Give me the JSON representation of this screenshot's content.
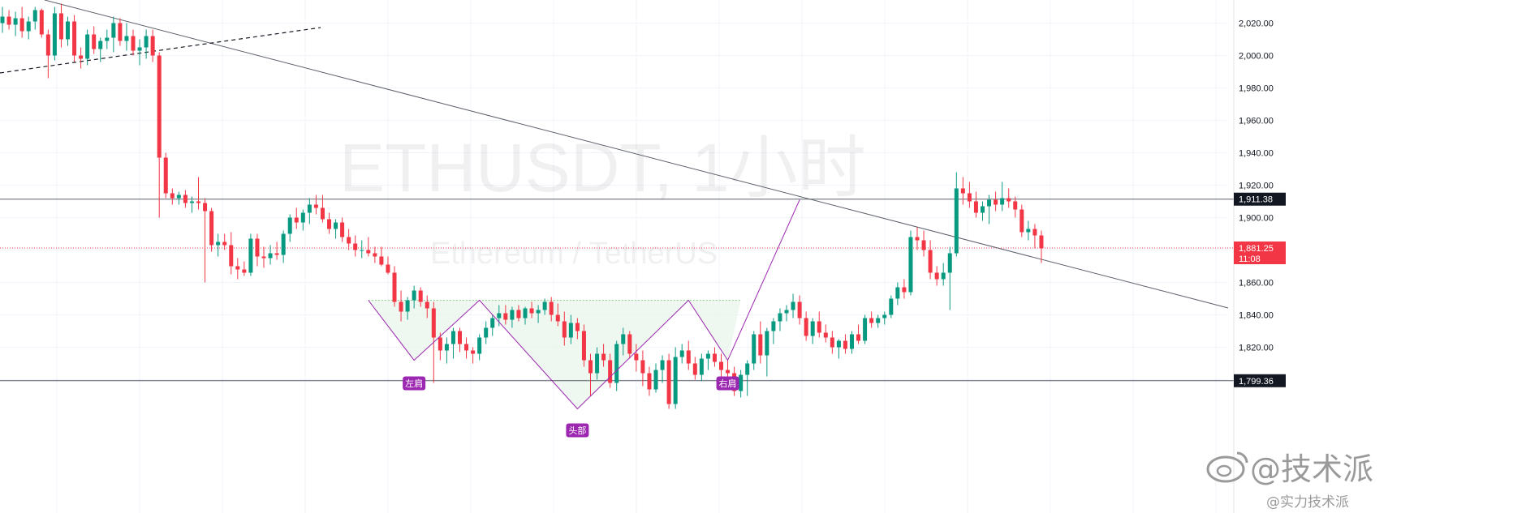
{
  "chart_data": {
    "type": "candlestick",
    "title": "ETHUSDT, 1小时",
    "subtitle": "Ethereum / TetherUS",
    "y_ticks": [
      1800,
      1820,
      1840,
      1860,
      1880,
      1900,
      1920,
      1940,
      1960,
      1980,
      2000,
      2020
    ],
    "y_tick_labels": [
      "1,800.00",
      "1,820.00",
      "1,840.00",
      "1,860.00",
      "1,880.00",
      "1,900.00",
      "1,920.00",
      "1,940.00",
      "1,960.00",
      "1,980.00",
      "2,000.00",
      "2,020.00"
    ],
    "ylim": [
      1776,
      2031
    ],
    "grid": true,
    "colors": {
      "up": "#089981",
      "down": "#f23645",
      "pattern": "#9c27b0",
      "label_bg": "#9c27b0",
      "trend": "#5d606b",
      "price": "#f23645"
    },
    "candles": [
      {
        "o": 2020,
        "h": 2030,
        "l": 2014,
        "c": 2024
      },
      {
        "o": 2024,
        "h": 2028,
        "l": 2016,
        "c": 2019
      },
      {
        "o": 2019,
        "h": 2027,
        "l": 2012,
        "c": 2023
      },
      {
        "o": 2023,
        "h": 2030,
        "l": 2011,
        "c": 2015
      },
      {
        "o": 2015,
        "h": 2024,
        "l": 2010,
        "c": 2021
      },
      {
        "o": 2021,
        "h": 2030,
        "l": 2016,
        "c": 2028
      },
      {
        "o": 2028,
        "h": 2029,
        "l": 2011,
        "c": 2013
      },
      {
        "o": 2013,
        "h": 2016,
        "l": 1986,
        "c": 2000
      },
      {
        "o": 2000,
        "h": 2030,
        "l": 1997,
        "c": 2026
      },
      {
        "o": 2026,
        "h": 2032,
        "l": 2005,
        "c": 2010
      },
      {
        "o": 2010,
        "h": 2024,
        "l": 2006,
        "c": 2021
      },
      {
        "o": 2021,
        "h": 2025,
        "l": 1996,
        "c": 2000
      },
      {
        "o": 2000,
        "h": 2005,
        "l": 1992,
        "c": 1998
      },
      {
        "o": 1998,
        "h": 2016,
        "l": 1994,
        "c": 2013
      },
      {
        "o": 2013,
        "h": 2018,
        "l": 2001,
        "c": 2004
      },
      {
        "o": 2004,
        "h": 2011,
        "l": 1996,
        "c": 2009
      },
      {
        "o": 2009,
        "h": 2016,
        "l": 2004,
        "c": 2011
      },
      {
        "o": 2011,
        "h": 2024,
        "l": 2002,
        "c": 2020
      },
      {
        "o": 2020,
        "h": 2023,
        "l": 2006,
        "c": 2009
      },
      {
        "o": 2009,
        "h": 2020,
        "l": 2003,
        "c": 2012
      },
      {
        "o": 2012,
        "h": 2016,
        "l": 2000,
        "c": 2003
      },
      {
        "o": 2003,
        "h": 2010,
        "l": 1994,
        "c": 2005
      },
      {
        "o": 2005,
        "h": 2016,
        "l": 1998,
        "c": 2012
      },
      {
        "o": 2012,
        "h": 2016,
        "l": 1996,
        "c": 2000
      },
      {
        "o": 2000,
        "h": 2002,
        "l": 1900,
        "c": 1937
      },
      {
        "o": 1937,
        "h": 1940,
        "l": 1912,
        "c": 1915
      },
      {
        "o": 1915,
        "h": 1918,
        "l": 1908,
        "c": 1912
      },
      {
        "o": 1912,
        "h": 1916,
        "l": 1908,
        "c": 1914
      },
      {
        "o": 1914,
        "h": 1917,
        "l": 1906,
        "c": 1909
      },
      {
        "o": 1909,
        "h": 1913,
        "l": 1903,
        "c": 1910
      },
      {
        "o": 1910,
        "h": 1925,
        "l": 1905,
        "c": 1909
      },
      {
        "o": 1909,
        "h": 1912,
        "l": 1860,
        "c": 1904
      },
      {
        "o": 1904,
        "h": 1906,
        "l": 1879,
        "c": 1883
      },
      {
        "o": 1883,
        "h": 1890,
        "l": 1876,
        "c": 1885
      },
      {
        "o": 1885,
        "h": 1890,
        "l": 1880,
        "c": 1883
      },
      {
        "o": 1883,
        "h": 1891,
        "l": 1865,
        "c": 1870
      },
      {
        "o": 1870,
        "h": 1875,
        "l": 1862,
        "c": 1868
      },
      {
        "o": 1868,
        "h": 1873,
        "l": 1864,
        "c": 1866
      },
      {
        "o": 1866,
        "h": 1890,
        "l": 1864,
        "c": 1887
      },
      {
        "o": 1887,
        "h": 1890,
        "l": 1870,
        "c": 1876
      },
      {
        "o": 1876,
        "h": 1882,
        "l": 1869,
        "c": 1875
      },
      {
        "o": 1875,
        "h": 1883,
        "l": 1871,
        "c": 1878
      },
      {
        "o": 1878,
        "h": 1885,
        "l": 1874,
        "c": 1877
      },
      {
        "o": 1877,
        "h": 1892,
        "l": 1872,
        "c": 1890
      },
      {
        "o": 1890,
        "h": 1902,
        "l": 1885,
        "c": 1900
      },
      {
        "o": 1900,
        "h": 1906,
        "l": 1893,
        "c": 1897
      },
      {
        "o": 1897,
        "h": 1905,
        "l": 1892,
        "c": 1903
      },
      {
        "o": 1903,
        "h": 1912,
        "l": 1896,
        "c": 1908
      },
      {
        "o": 1908,
        "h": 1914,
        "l": 1902,
        "c": 1906
      },
      {
        "o": 1906,
        "h": 1914,
        "l": 1897,
        "c": 1899
      },
      {
        "o": 1899,
        "h": 1903,
        "l": 1890,
        "c": 1893
      },
      {
        "o": 1893,
        "h": 1899,
        "l": 1887,
        "c": 1897
      },
      {
        "o": 1897,
        "h": 1900,
        "l": 1885,
        "c": 1888
      },
      {
        "o": 1888,
        "h": 1893,
        "l": 1880,
        "c": 1884
      },
      {
        "o": 1884,
        "h": 1889,
        "l": 1876,
        "c": 1880
      },
      {
        "o": 1880,
        "h": 1886,
        "l": 1875,
        "c": 1880
      },
      {
        "o": 1880,
        "h": 1888,
        "l": 1876,
        "c": 1878
      },
      {
        "o": 1878,
        "h": 1882,
        "l": 1872,
        "c": 1876
      },
      {
        "o": 1876,
        "h": 1882,
        "l": 1870,
        "c": 1871
      },
      {
        "o": 1871,
        "h": 1876,
        "l": 1865,
        "c": 1866
      },
      {
        "o": 1866,
        "h": 1870,
        "l": 1845,
        "c": 1848
      },
      {
        "o": 1848,
        "h": 1855,
        "l": 1836,
        "c": 1842
      },
      {
        "o": 1842,
        "h": 1851,
        "l": 1837,
        "c": 1849
      },
      {
        "o": 1849,
        "h": 1858,
        "l": 1844,
        "c": 1855
      },
      {
        "o": 1855,
        "h": 1857,
        "l": 1845,
        "c": 1848
      },
      {
        "o": 1848,
        "h": 1852,
        "l": 1838,
        "c": 1844
      },
      {
        "o": 1844,
        "h": 1848,
        "l": 1798,
        "c": 1826
      },
      {
        "o": 1826,
        "h": 1829,
        "l": 1812,
        "c": 1818
      },
      {
        "o": 1818,
        "h": 1826,
        "l": 1810,
        "c": 1822
      },
      {
        "o": 1822,
        "h": 1832,
        "l": 1813,
        "c": 1830
      },
      {
        "o": 1830,
        "h": 1832,
        "l": 1817,
        "c": 1822
      },
      {
        "o": 1822,
        "h": 1826,
        "l": 1813,
        "c": 1818
      },
      {
        "o": 1818,
        "h": 1820,
        "l": 1810,
        "c": 1816
      },
      {
        "o": 1816,
        "h": 1828,
        "l": 1812,
        "c": 1826
      },
      {
        "o": 1826,
        "h": 1836,
        "l": 1822,
        "c": 1832
      },
      {
        "o": 1832,
        "h": 1840,
        "l": 1827,
        "c": 1838
      },
      {
        "o": 1838,
        "h": 1846,
        "l": 1833,
        "c": 1841
      },
      {
        "o": 1841,
        "h": 1846,
        "l": 1834,
        "c": 1837
      },
      {
        "o": 1837,
        "h": 1845,
        "l": 1832,
        "c": 1843
      },
      {
        "o": 1843,
        "h": 1846,
        "l": 1836,
        "c": 1838
      },
      {
        "o": 1838,
        "h": 1845,
        "l": 1834,
        "c": 1844
      },
      {
        "o": 1844,
        "h": 1848,
        "l": 1838,
        "c": 1841
      },
      {
        "o": 1841,
        "h": 1846,
        "l": 1835,
        "c": 1843
      },
      {
        "o": 1843,
        "h": 1850,
        "l": 1840,
        "c": 1848
      },
      {
        "o": 1848,
        "h": 1851,
        "l": 1836,
        "c": 1840
      },
      {
        "o": 1840,
        "h": 1847,
        "l": 1833,
        "c": 1836
      },
      {
        "o": 1836,
        "h": 1842,
        "l": 1821,
        "c": 1826
      },
      {
        "o": 1826,
        "h": 1840,
        "l": 1822,
        "c": 1835
      },
      {
        "o": 1835,
        "h": 1838,
        "l": 1825,
        "c": 1830
      },
      {
        "o": 1830,
        "h": 1834,
        "l": 1808,
        "c": 1812
      },
      {
        "o": 1812,
        "h": 1816,
        "l": 1790,
        "c": 1804
      },
      {
        "o": 1804,
        "h": 1820,
        "l": 1800,
        "c": 1816
      },
      {
        "o": 1816,
        "h": 1822,
        "l": 1808,
        "c": 1812
      },
      {
        "o": 1812,
        "h": 1816,
        "l": 1795,
        "c": 1798
      },
      {
        "o": 1798,
        "h": 1824,
        "l": 1793,
        "c": 1822
      },
      {
        "o": 1822,
        "h": 1832,
        "l": 1815,
        "c": 1828
      },
      {
        "o": 1828,
        "h": 1830,
        "l": 1813,
        "c": 1816
      },
      {
        "o": 1816,
        "h": 1822,
        "l": 1805,
        "c": 1812
      },
      {
        "o": 1812,
        "h": 1818,
        "l": 1796,
        "c": 1804
      },
      {
        "o": 1804,
        "h": 1808,
        "l": 1790,
        "c": 1794
      },
      {
        "o": 1794,
        "h": 1810,
        "l": 1792,
        "c": 1806
      },
      {
        "o": 1806,
        "h": 1815,
        "l": 1798,
        "c": 1812
      },
      {
        "o": 1812,
        "h": 1816,
        "l": 1782,
        "c": 1785
      },
      {
        "o": 1785,
        "h": 1820,
        "l": 1782,
        "c": 1814
      },
      {
        "o": 1814,
        "h": 1822,
        "l": 1810,
        "c": 1818
      },
      {
        "o": 1818,
        "h": 1824,
        "l": 1806,
        "c": 1810
      },
      {
        "o": 1810,
        "h": 1814,
        "l": 1800,
        "c": 1803
      },
      {
        "o": 1803,
        "h": 1816,
        "l": 1799,
        "c": 1813
      },
      {
        "o": 1813,
        "h": 1818,
        "l": 1806,
        "c": 1816
      },
      {
        "o": 1816,
        "h": 1820,
        "l": 1808,
        "c": 1811
      },
      {
        "o": 1811,
        "h": 1816,
        "l": 1802,
        "c": 1806
      },
      {
        "o": 1806,
        "h": 1812,
        "l": 1800,
        "c": 1804
      },
      {
        "o": 1804,
        "h": 1808,
        "l": 1790,
        "c": 1793
      },
      {
        "o": 1793,
        "h": 1806,
        "l": 1789,
        "c": 1803
      },
      {
        "o": 1803,
        "h": 1812,
        "l": 1790,
        "c": 1810
      },
      {
        "o": 1810,
        "h": 1830,
        "l": 1806,
        "c": 1828
      },
      {
        "o": 1828,
        "h": 1836,
        "l": 1810,
        "c": 1815
      },
      {
        "o": 1815,
        "h": 1832,
        "l": 1802,
        "c": 1830
      },
      {
        "o": 1830,
        "h": 1838,
        "l": 1822,
        "c": 1836
      },
      {
        "o": 1836,
        "h": 1844,
        "l": 1830,
        "c": 1841
      },
      {
        "o": 1841,
        "h": 1846,
        "l": 1836,
        "c": 1843
      },
      {
        "o": 1843,
        "h": 1853,
        "l": 1838,
        "c": 1848
      },
      {
        "o": 1848,
        "h": 1852,
        "l": 1834,
        "c": 1838
      },
      {
        "o": 1838,
        "h": 1842,
        "l": 1824,
        "c": 1827
      },
      {
        "o": 1827,
        "h": 1838,
        "l": 1822,
        "c": 1836
      },
      {
        "o": 1836,
        "h": 1842,
        "l": 1826,
        "c": 1829
      },
      {
        "o": 1829,
        "h": 1834,
        "l": 1823,
        "c": 1826
      },
      {
        "o": 1826,
        "h": 1830,
        "l": 1816,
        "c": 1820
      },
      {
        "o": 1820,
        "h": 1825,
        "l": 1813,
        "c": 1824
      },
      {
        "o": 1824,
        "h": 1828,
        "l": 1816,
        "c": 1819
      },
      {
        "o": 1819,
        "h": 1830,
        "l": 1816,
        "c": 1828
      },
      {
        "o": 1828,
        "h": 1834,
        "l": 1822,
        "c": 1824
      },
      {
        "o": 1824,
        "h": 1840,
        "l": 1822,
        "c": 1838
      },
      {
        "o": 1838,
        "h": 1842,
        "l": 1832,
        "c": 1835
      },
      {
        "o": 1835,
        "h": 1840,
        "l": 1832,
        "c": 1838
      },
      {
        "o": 1838,
        "h": 1842,
        "l": 1834,
        "c": 1840
      },
      {
        "o": 1840,
        "h": 1852,
        "l": 1838,
        "c": 1850
      },
      {
        "o": 1850,
        "h": 1860,
        "l": 1846,
        "c": 1857
      },
      {
        "o": 1857,
        "h": 1862,
        "l": 1850,
        "c": 1854
      },
      {
        "o": 1854,
        "h": 1892,
        "l": 1852,
        "c": 1888
      },
      {
        "o": 1888,
        "h": 1894,
        "l": 1880,
        "c": 1886
      },
      {
        "o": 1886,
        "h": 1892,
        "l": 1876,
        "c": 1880
      },
      {
        "o": 1880,
        "h": 1886,
        "l": 1862,
        "c": 1866
      },
      {
        "o": 1866,
        "h": 1870,
        "l": 1858,
        "c": 1862
      },
      {
        "o": 1862,
        "h": 1872,
        "l": 1858,
        "c": 1866
      },
      {
        "o": 1866,
        "h": 1882,
        "l": 1843,
        "c": 1878
      },
      {
        "o": 1878,
        "h": 1928,
        "l": 1876,
        "c": 1918
      },
      {
        "o": 1918,
        "h": 1925,
        "l": 1908,
        "c": 1915
      },
      {
        "o": 1915,
        "h": 1922,
        "l": 1906,
        "c": 1910
      },
      {
        "o": 1910,
        "h": 1916,
        "l": 1900,
        "c": 1903
      },
      {
        "o": 1903,
        "h": 1910,
        "l": 1898,
        "c": 1907
      },
      {
        "o": 1907,
        "h": 1914,
        "l": 1896,
        "c": 1911
      },
      {
        "o": 1911,
        "h": 1916,
        "l": 1904,
        "c": 1908
      },
      {
        "o": 1908,
        "h": 1922,
        "l": 1904,
        "c": 1912
      },
      {
        "o": 1912,
        "h": 1918,
        "l": 1906,
        "c": 1910
      },
      {
        "o": 1910,
        "h": 1913,
        "l": 1900,
        "c": 1905
      },
      {
        "o": 1905,
        "h": 1908,
        "l": 1888,
        "c": 1891
      },
      {
        "o": 1891,
        "h": 1898,
        "l": 1886,
        "c": 1893
      },
      {
        "o": 1893,
        "h": 1896,
        "l": 1881,
        "c": 1889
      },
      {
        "o": 1889,
        "h": 1892,
        "l": 1872,
        "c": 1881
      }
    ],
    "horizontal_levels": [
      {
        "value": 1911.38,
        "label": "1,911.38"
      },
      {
        "value": 1799.36,
        "label": "1,799.36"
      }
    ],
    "current_price": {
      "value": 1881.25,
      "label": "1,881.25",
      "countdown": "11:08"
    },
    "neckline": 1849,
    "pattern_labels": [
      "左肩",
      "头部",
      "右肩"
    ],
    "watermark": {
      "handle": "@技术派",
      "caption": "@实力技术派"
    }
  }
}
